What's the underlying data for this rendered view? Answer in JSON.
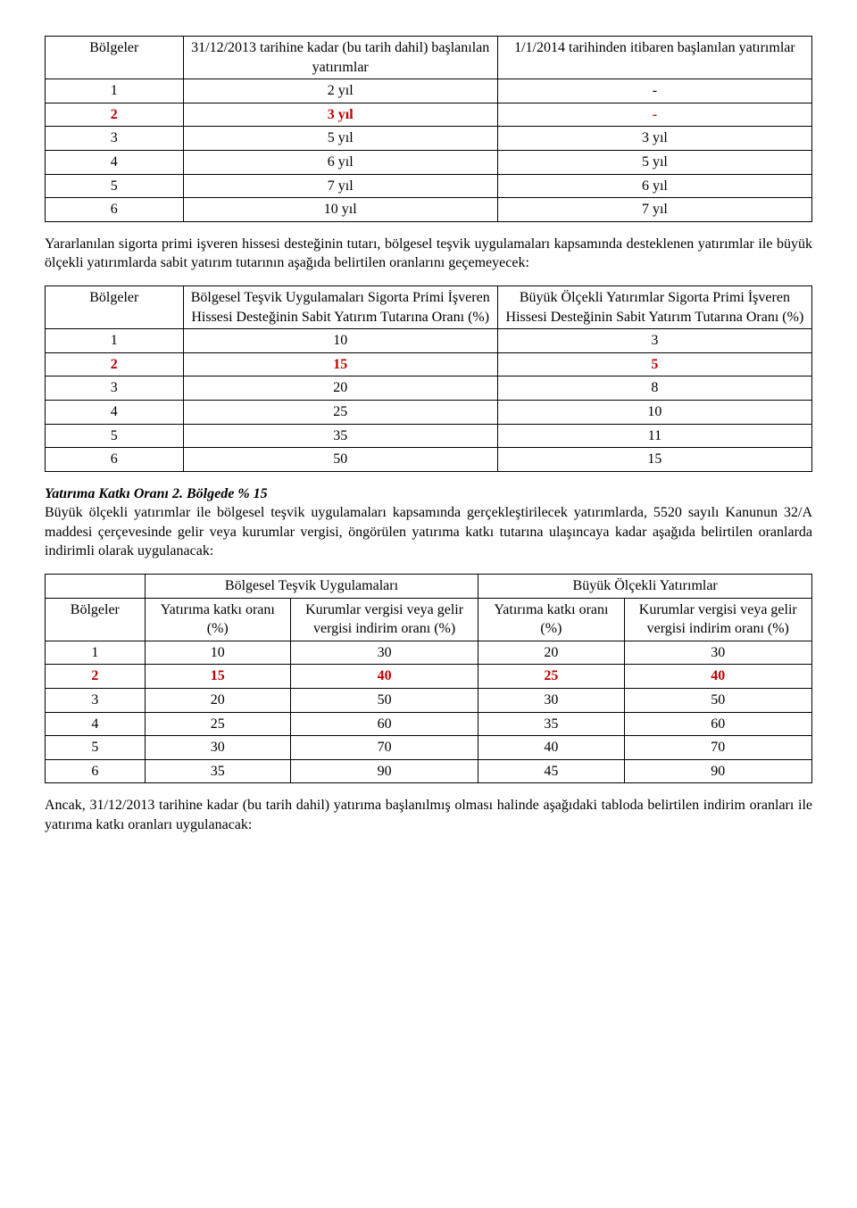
{
  "colors": {
    "highlight_row_color": "#c00000",
    "text_color": "#000000",
    "border_color": "#000000",
    "background_color": "#ffffff"
  },
  "typography": {
    "font_family": "Times New Roman",
    "body_fontsize_pt": 12
  },
  "table1": {
    "headers": {
      "col1": "Bölgeler",
      "col2": "31/12/2013 tarihine kadar (bu tarih dahil) başlanılan yatırımlar",
      "col3": "1/1/2014 tarihinden itibaren başlanılan yatırımlar"
    },
    "rows": [
      {
        "c1": "1",
        "c2": "2 yıl",
        "c3": "-",
        "hl": false
      },
      {
        "c1": "2",
        "c2": "3 yıl",
        "c3": "-",
        "hl": true
      },
      {
        "c1": "3",
        "c2": "5 yıl",
        "c3": "3 yıl",
        "hl": false
      },
      {
        "c1": "4",
        "c2": "6 yıl",
        "c3": "5 yıl",
        "hl": false
      },
      {
        "c1": "5",
        "c2": "7 yıl",
        "c3": "6 yıl",
        "hl": false
      },
      {
        "c1": "6",
        "c2": "10 yıl",
        "c3": "7 yıl",
        "hl": false
      }
    ]
  },
  "para1": "Yararlanılan sigorta primi işveren hissesi desteğinin tutarı, bölgesel teşvik uygulamaları kapsamında desteklenen yatırımlar ile büyük ölçekli yatırımlarda sabit yatırım tutarının aşağıda belirtilen oranlarını geçemeyecek:",
  "table2": {
    "headers": {
      "col1": "Bölgeler",
      "col2": "Bölgesel Teşvik Uygulamaları Sigorta Primi İşveren Hissesi Desteğinin Sabit Yatırım Tutarına Oranı  (%)",
      "col3": "Büyük Ölçekli Yatırımlar Sigorta Primi İşveren Hissesi Desteğinin Sabit Yatırım Tutarına Oranı (%)"
    },
    "rows": [
      {
        "c1": "1",
        "c2": "10",
        "c3": "3",
        "hl": false
      },
      {
        "c1": "2",
        "c2": "15",
        "c3": "5",
        "hl": true
      },
      {
        "c1": "3",
        "c2": "20",
        "c3": "8",
        "hl": false
      },
      {
        "c1": "4",
        "c2": "25",
        "c3": "10",
        "hl": false
      },
      {
        "c1": "5",
        "c2": "35",
        "c3": "11",
        "hl": false
      },
      {
        "c1": "6",
        "c2": "50",
        "c3": "15",
        "hl": false
      }
    ]
  },
  "section2": {
    "heading": "Yatırıma Katkı Oranı 2. Bölgede % 15",
    "body": "Büyük ölçekli yatırımlar ile bölgesel teşvik uygulamaları kapsamında gerçekleştirilecek yatırımlarda, 5520 sayılı Kanunun 32/A maddesi çerçevesinde gelir veya kurumlar vergisi, öngörülen yatırıma katkı tutarına ulaşıncaya kadar aşağıda belirtilen oranlarda indirimli olarak uygulanacak:"
  },
  "table3": {
    "top_headers": {
      "col1_blank": "",
      "group1": "Bölgesel Teşvik Uygulamaları",
      "group2": "Büyük Ölçekli Yatırımlar"
    },
    "sub_headers": {
      "col1": "Bölgeler",
      "col2": "Yatırıma katkı oranı (%)",
      "col3": "Kurumlar vergisi veya gelir vergisi indirim oranı (%)",
      "col4": "Yatırıma katkı oranı (%)",
      "col5": "Kurumlar vergisi veya gelir vergisi indirim oranı (%)"
    },
    "rows": [
      {
        "c1": "1",
        "c2": "10",
        "c3": "30",
        "c4": "20",
        "c5": "30",
        "hl": false
      },
      {
        "c1": "2",
        "c2": "15",
        "c3": "40",
        "c4": "25",
        "c5": "40",
        "hl": true
      },
      {
        "c1": "3",
        "c2": "20",
        "c3": "50",
        "c4": "30",
        "c5": "50",
        "hl": false
      },
      {
        "c1": "4",
        "c2": "25",
        "c3": "60",
        "c4": "35",
        "c5": "60",
        "hl": false
      },
      {
        "c1": "5",
        "c2": "30",
        "c3": "70",
        "c4": "40",
        "c5": "70",
        "hl": false
      },
      {
        "c1": "6",
        "c2": "35",
        "c3": "90",
        "c4": "45",
        "c5": "90",
        "hl": false
      }
    ]
  },
  "para3": "Ancak, 31/12/2013 tarihine kadar (bu tarih dahil) yatırıma başlanılmış olması halinde aşağıdaki tabloda belirtilen indirim oranları ile yatırıma katkı oranları uygulanacak:"
}
